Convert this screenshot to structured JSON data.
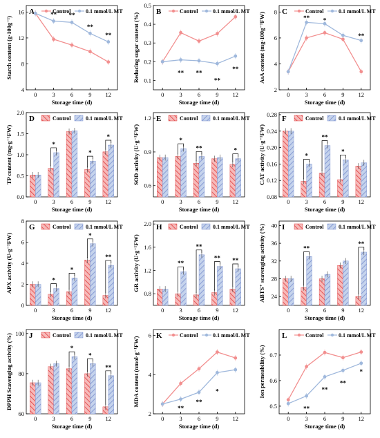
{
  "colors": {
    "control": "#f28f8f",
    "mt": "#9fb8dc",
    "control_dark": "#e03c3c",
    "mt_dark": "#7a8fcf"
  },
  "legend": {
    "control": "Control",
    "mt": "0.1 mmol/L MT"
  },
  "x_label": "Storage time (d)",
  "chart_data": [
    {
      "letter": "A",
      "type": "line",
      "ylabel": "Starch content (g·100g⁻¹)",
      "x": [
        0,
        3,
        6,
        9,
        12
      ],
      "xticks": [
        "0",
        "3",
        "6",
        "9",
        "12"
      ],
      "ylim": [
        4,
        17
      ],
      "yticks": [
        4,
        8,
        12,
        16
      ],
      "legend_pos": "top",
      "series": [
        {
          "name": "Control",
          "values": [
            15.8,
            11.8,
            10.9,
            9.9,
            8.3
          ]
        },
        {
          "name": "0.1 mmol/L MT",
          "values": [
            15.8,
            14.6,
            14.4,
            12.7,
            11.4
          ]
        }
      ],
      "sig": [
        {
          "x": 3,
          "y": 15.6,
          "text": "**"
        },
        {
          "x": 6,
          "y": 15.5,
          "text": "**"
        },
        {
          "x": 9,
          "y": 13.7,
          "text": "**"
        },
        {
          "x": 12,
          "y": 12.4,
          "text": "**"
        }
      ]
    },
    {
      "letter": "B",
      "type": "line",
      "ylabel": "Reducing sugar content (%)",
      "x": [
        0,
        3,
        6,
        9,
        12
      ],
      "xticks": [
        "0",
        "3",
        "6",
        "9",
        "12"
      ],
      "ylim": [
        0.05,
        0.5
      ],
      "yticks": [
        0.1,
        0.2,
        0.3,
        0.4,
        0.5
      ],
      "yfmt": 1,
      "legend_pos": "top",
      "series": [
        {
          "name": "Control",
          "values": [
            0.2,
            0.355,
            0.31,
            0.35,
            0.44
          ]
        },
        {
          "name": "0.1 mmol/L MT",
          "values": [
            0.2,
            0.21,
            0.205,
            0.19,
            0.23
          ]
        }
      ],
      "sig": [
        {
          "x": 3,
          "y": 0.14,
          "text": "**"
        },
        {
          "x": 6,
          "y": 0.14,
          "text": "**"
        },
        {
          "x": 9,
          "y": 0.1,
          "text": "**"
        },
        {
          "x": 12,
          "y": 0.16,
          "text": "**"
        }
      ]
    },
    {
      "letter": "C",
      "type": "line",
      "ylabel": "AsA content (mg·100g⁻¹FW)",
      "x": [
        0,
        3,
        6,
        9,
        12
      ],
      "xticks": [
        "0",
        "3",
        "6",
        "9",
        "12"
      ],
      "ylim": [
        2,
        8.5
      ],
      "yticks": [
        2,
        4,
        6,
        8
      ],
      "legend_pos": "top",
      "series": [
        {
          "name": "Control",
          "values": [
            3.4,
            6.0,
            6.4,
            5.9,
            3.4
          ]
        },
        {
          "name": "0.1 mmol/L MT",
          "values": [
            3.4,
            7.2,
            7.1,
            6.2,
            5.8
          ]
        }
      ],
      "sig": [
        {
          "x": 3,
          "y": 7.55,
          "text": "**"
        },
        {
          "x": 6,
          "y": 7.35,
          "text": "*"
        },
        {
          "x": 12,
          "y": 6.15,
          "text": "**"
        }
      ]
    },
    {
      "letter": "D",
      "type": "bar",
      "ylabel": "TP content (mg·g⁻¹FW)",
      "categories": [
        "0",
        "3",
        "6",
        "9",
        "12"
      ],
      "ylim": [
        0,
        2.0
      ],
      "yticks": [
        0.0,
        0.5,
        1.0,
        1.5,
        2.0
      ],
      "yfmt": 1,
      "legend_pos": "top",
      "series": [
        {
          "name": "Control",
          "values": [
            0.52,
            0.68,
            1.55,
            0.65,
            1.07
          ]
        },
        {
          "name": "0.1 mmol/L MT",
          "values": [
            0.52,
            1.05,
            1.57,
            0.85,
            1.23
          ]
        }
      ],
      "sig": [
        {
          "i": 1,
          "text": "*"
        },
        {
          "i": 3,
          "text": "*"
        },
        {
          "i": 4,
          "text": "*"
        }
      ]
    },
    {
      "letter": "E",
      "type": "bar",
      "ylabel": "SOD activity (U·g⁻¹FW)",
      "categories": [
        "0",
        "3",
        "6",
        "9",
        "12"
      ],
      "ylim": [
        0.5,
        1.25
      ],
      "yticks": [
        0.6,
        0.9,
        1.2
      ],
      "yfmt": 1,
      "legend_pos": "top",
      "series": [
        {
          "name": "Control",
          "values": [
            0.85,
            0.86,
            0.8,
            0.84,
            0.79
          ]
        },
        {
          "name": "0.1 mmol/L MT",
          "values": [
            0.85,
            0.93,
            0.86,
            0.85,
            0.84
          ]
        }
      ],
      "sig": [
        {
          "i": 1,
          "text": "*"
        },
        {
          "i": 2,
          "text": "**"
        },
        {
          "i": 4,
          "text": "*"
        }
      ]
    },
    {
      "letter": "F",
      "type": "bar",
      "ylabel": "CAT activity (U·g⁻¹FW)",
      "categories": [
        "0",
        "3",
        "6",
        "9",
        "12"
      ],
      "ylim": [
        0.08,
        0.285
      ],
      "yticks": [
        0.08,
        0.12,
        0.16,
        0.2,
        0.24,
        0.28
      ],
      "yfmt": 2,
      "legend_pos": "top",
      "series": [
        {
          "name": "Control",
          "values": [
            0.24,
            0.118,
            0.138,
            0.122,
            0.155
          ]
        },
        {
          "name": "0.1 mmol/L MT",
          "values": [
            0.24,
            0.16,
            0.205,
            0.17,
            0.163
          ]
        }
      ],
      "sig": [
        {
          "i": 1,
          "text": "*"
        },
        {
          "i": 2,
          "text": "**"
        },
        {
          "i": 3,
          "text": "*"
        }
      ]
    },
    {
      "letter": "G",
      "type": "bar",
      "ylabel": "APX activity (U·g⁻¹FW)",
      "categories": [
        "0",
        "3",
        "6",
        "9",
        "12"
      ],
      "ylim": [
        0,
        8
      ],
      "yticks": [
        0,
        2,
        4,
        6,
        8
      ],
      "legend_pos": "top",
      "series": [
        {
          "name": "Control",
          "values": [
            2.0,
            1.05,
            1.3,
            4.3,
            0.95
          ]
        },
        {
          "name": "0.1 mmol/L MT",
          "values": [
            2.0,
            1.6,
            2.6,
            5.85,
            3.8
          ]
        }
      ],
      "sig": [
        {
          "i": 1,
          "text": "*"
        },
        {
          "i": 2,
          "text": "*"
        },
        {
          "i": 3,
          "text": "*"
        },
        {
          "i": 4,
          "text": "**"
        }
      ]
    },
    {
      "letter": "H",
      "type": "bar",
      "ylabel": "GR activity (U·g⁻¹FW)",
      "categories": [
        "0",
        "3",
        "6",
        "9",
        "12"
      ],
      "ylim": [
        0.6,
        2.05
      ],
      "yticks": [
        0.8,
        1.2,
        1.6,
        2.0
      ],
      "yfmt": 1,
      "legend_pos": "top",
      "series": [
        {
          "name": "Control",
          "values": [
            0.88,
            0.8,
            0.78,
            0.82,
            0.88
          ]
        },
        {
          "name": "0.1 mmol/L MT",
          "values": [
            0.88,
            1.18,
            1.47,
            1.27,
            1.23
          ]
        }
      ],
      "sig": [
        {
          "i": 1,
          "text": "**"
        },
        {
          "i": 2,
          "text": "**"
        },
        {
          "i": 3,
          "text": "**"
        },
        {
          "i": 4,
          "text": "**"
        }
      ]
    },
    {
      "letter": "I",
      "type": "bar",
      "ylabel": "ABTS⁺ scavenging activity (%)",
      "categories": [
        "0",
        "3",
        "6",
        "9",
        "12"
      ],
      "ylim": [
        22,
        41
      ],
      "yticks": [
        24,
        28,
        32,
        36,
        40
      ],
      "legend_pos": "top",
      "series": [
        {
          "name": "Control",
          "values": [
            28,
            26,
            28,
            31,
            24
          ]
        },
        {
          "name": "0.1 mmol/L MT",
          "values": [
            28,
            33,
            29,
            32,
            34
          ]
        }
      ],
      "sig": [
        {
          "i": 1,
          "text": "**"
        },
        {
          "i": 4,
          "text": "**"
        }
      ]
    },
    {
      "letter": "J",
      "type": "bar",
      "ylabel": "DPPH Scavenging activity (%)",
      "categories": [
        "0",
        "3",
        "6",
        "9",
        "12"
      ],
      "ylim": [
        60,
        102
      ],
      "yticks": [
        60,
        80,
        100
      ],
      "legend_pos": "top",
      "series": [
        {
          "name": "Control",
          "values": [
            75.5,
            83.5,
            82.5,
            80,
            63.5
          ]
        },
        {
          "name": "0.1 mmol/L MT",
          "values": [
            75.5,
            85,
            88.5,
            85,
            79
          ]
        }
      ],
      "sig": [
        {
          "i": 2,
          "text": "*"
        },
        {
          "i": 3,
          "text": "*"
        },
        {
          "i": 4,
          "text": "**"
        }
      ]
    },
    {
      "letter": "K",
      "type": "line",
      "ylabel": "MDA content (nmol·g⁻¹FW)",
      "x": [
        0,
        3,
        6,
        9,
        12
      ],
      "xticks": [
        "0",
        "3",
        "6",
        "9",
        "12"
      ],
      "ylim": [
        2,
        6.3
      ],
      "yticks": [
        2,
        4,
        6
      ],
      "legend_pos": "top",
      "series": [
        {
          "name": "Control",
          "values": [
            2.5,
            3.55,
            4.3,
            5.15,
            4.85
          ]
        },
        {
          "name": "0.1 mmol/L MT",
          "values": [
            2.5,
            2.75,
            3.1,
            4.1,
            4.25
          ]
        }
      ],
      "sig": [
        {
          "x": 3,
          "y": 2.28,
          "text": "**"
        },
        {
          "x": 6,
          "y": 2.6,
          "text": "**"
        },
        {
          "x": 9,
          "y": 3.15,
          "text": "*"
        }
      ]
    },
    {
      "letter": "L",
      "type": "line",
      "ylabel": "Ion permeability (%)",
      "x": [
        0,
        3,
        6,
        9,
        12
      ],
      "xticks": [
        "0",
        "3",
        "6",
        "9",
        "12"
      ],
      "ylim": [
        0.47,
        0.8
      ],
      "yticks": [
        0.5,
        0.6,
        0.7
      ],
      "yfmt": 1,
      "legend_pos": "top",
      "series": [
        {
          "name": "Control",
          "values": [
            0.525,
            0.655,
            0.71,
            0.69,
            0.712
          ]
        },
        {
          "name": "0.1 mmol/L MT",
          "values": [
            0.51,
            0.54,
            0.615,
            0.64,
            0.668
          ]
        }
      ],
      "sig": [
        {
          "x": 3,
          "y": 0.49,
          "text": "**"
        },
        {
          "x": 6,
          "y": 0.565,
          "text": "**"
        },
        {
          "x": 9,
          "y": 0.59,
          "text": "**"
        },
        {
          "x": 12,
          "y": 0.635,
          "text": "*"
        }
      ]
    }
  ]
}
